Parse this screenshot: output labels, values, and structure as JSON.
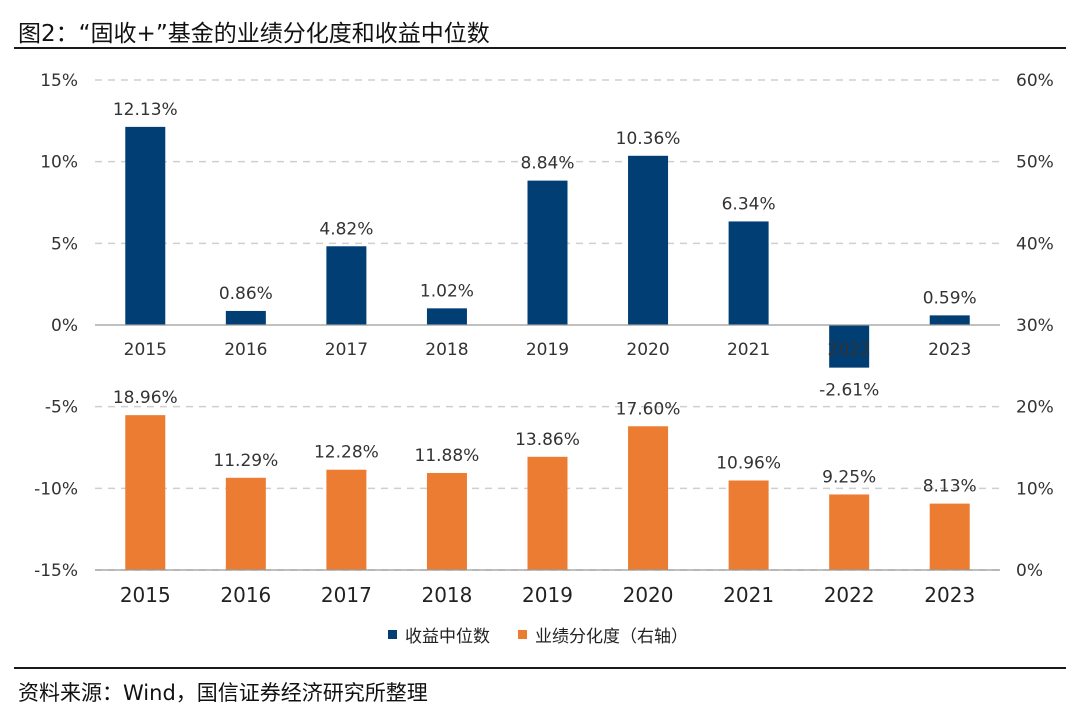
{
  "title": "图2：“固收+”基金的业绩分化度和收益中位数",
  "source": "资料来源：Wind，国信证券经济研究所整理",
  "colors": {
    "blue": "#003E73",
    "orange": "#EC7C31",
    "grid": "#cfcfcf",
    "text": "#333333"
  },
  "chart_data": {
    "type": "bar",
    "categories": [
      "2015",
      "2016",
      "2017",
      "2018",
      "2019",
      "2020",
      "2021",
      "2022",
      "2023"
    ],
    "series": [
      {
        "name": "收益中位数",
        "axis": "left",
        "color": "#003E73",
        "values": [
          12.13,
          0.86,
          4.82,
          1.02,
          8.84,
          10.36,
          6.34,
          -2.61,
          0.59
        ],
        "labels": [
          "12.13%",
          "0.86%",
          "4.82%",
          "1.02%",
          "8.84%",
          "10.36%",
          "6.34%",
          "-2.61%",
          "0.59%"
        ]
      },
      {
        "name": "业绩分化度（右轴）",
        "axis": "right",
        "color": "#EC7C31",
        "values": [
          18.96,
          11.29,
          12.28,
          11.88,
          13.86,
          17.6,
          10.96,
          9.25,
          8.13
        ],
        "labels": [
          "18.96%",
          "11.29%",
          "12.28%",
          "11.88%",
          "13.86%",
          "17.60%",
          "10.96%",
          "9.25%",
          "8.13%"
        ]
      }
    ],
    "left_axis": {
      "ticks": [
        15,
        10,
        5,
        0,
        -5,
        -10,
        -15
      ],
      "tick_labels": [
        "15%",
        "10%",
        "5%",
        "0%",
        "-5%",
        "-10%",
        "-15%"
      ],
      "ylim": [
        -15,
        15
      ]
    },
    "right_axis": {
      "ticks": [
        60,
        50,
        40,
        30,
        20,
        10,
        0
      ],
      "tick_labels": [
        "60%",
        "50%",
        "40%",
        "30%",
        "20%",
        "10%",
        "0%"
      ],
      "ylim": [
        0,
        60
      ]
    },
    "gridlines": true,
    "legend_position": "bottom-center"
  }
}
